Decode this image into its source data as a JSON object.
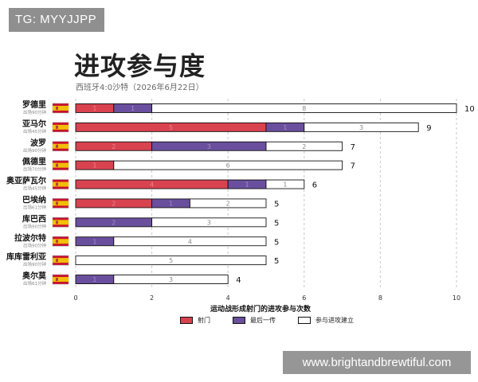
{
  "tag": "TG: MYYJJPP",
  "watermark": "www.brightandbrewtiful.com",
  "colors": {
    "shot": "#d9424f",
    "final_pass": "#6a4f9e",
    "build_up": "#ffffff",
    "outline": "#111111",
    "flag_red": "#c8102e",
    "flag_yellow": "#f1bf00"
  },
  "chart_data": {
    "type": "bar",
    "orientation": "horizontal",
    "stacked": true,
    "title": "进攻参与度",
    "subtitle": "西班牙4:0沙特（2026年6月22日）",
    "xlabel": "运动战形成射门的进攻参与次数",
    "xlim": [
      0,
      10
    ],
    "xticks": [
      0,
      2,
      4,
      6,
      8,
      10
    ],
    "grid": "vertical-dashed",
    "legend_position": "bottom",
    "categories": [
      "罗德里",
      "亚马尔",
      "波罗",
      "佩德里",
      "奥亚萨瓦尔",
      "巴埃纳",
      "库巴西",
      "拉波尔特",
      "库库雷利亚",
      "奥尔莫"
    ],
    "sublabels": [
      "出场90分钟",
      "出场45分钟",
      "出场90分钟",
      "出场70分钟",
      "出场45分钟",
      "出场61分钟",
      "出场90分钟",
      "出场90分钟",
      "出场90分钟",
      "出场61分钟"
    ],
    "series": [
      {
        "name": "射门",
        "values": [
          1,
          5,
          2,
          1,
          4,
          2,
          0,
          0,
          0,
          0
        ]
      },
      {
        "name": "最后一传",
        "values": [
          1,
          1,
          3,
          0,
          1,
          1,
          2,
          1,
          0,
          1
        ]
      },
      {
        "name": "参与进攻建立",
        "values": [
          8,
          3,
          2,
          6,
          1,
          2,
          3,
          4,
          5,
          3
        ]
      }
    ],
    "totals": [
      10,
      9,
      7,
      7,
      6,
      5,
      5,
      5,
      5,
      4
    ]
  }
}
